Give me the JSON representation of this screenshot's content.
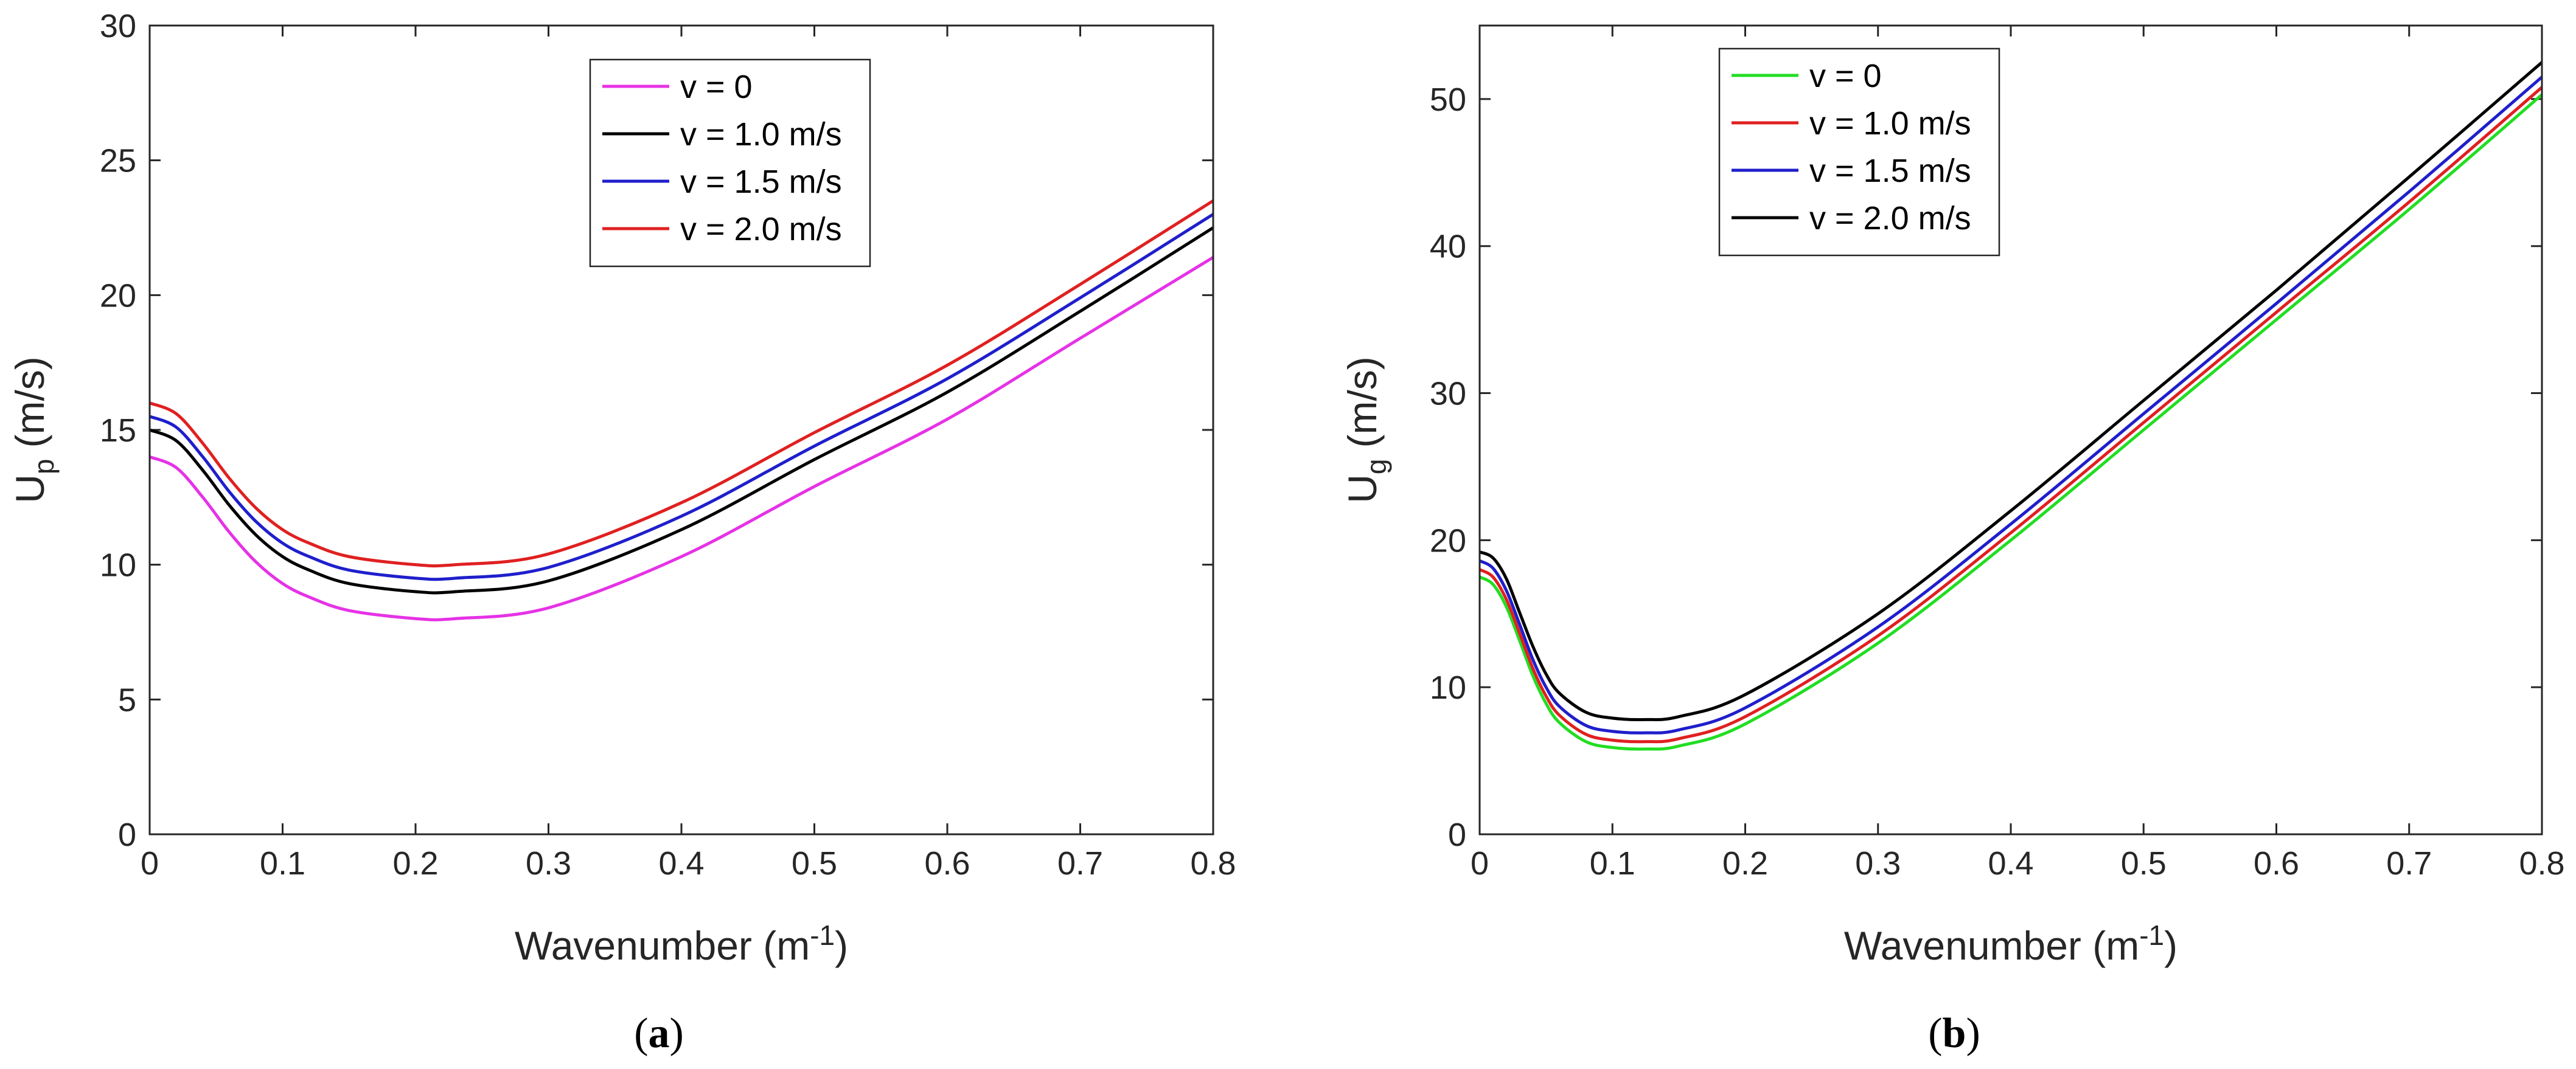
{
  "chart_data": [
    {
      "type": "line",
      "panel": "a",
      "caption_open": "(",
      "caption_letter": "a",
      "caption_close": ")",
      "ylabel_main": "U",
      "ylabel_sub": "p",
      "ylabel_unit": "(m/s)",
      "xlabel_main": "Wavenumber (m",
      "xlabel_sup": "-1",
      "xlabel_close": ")",
      "xlim": [
        0,
        0.8
      ],
      "ylim": [
        0,
        30
      ],
      "xticks": [
        "0",
        "0.1",
        "0.2",
        "0.3",
        "0.4",
        "0.5",
        "0.6",
        "0.7",
        "0.8"
      ],
      "yticks": [
        "0",
        "5",
        "10",
        "15",
        "20",
        "25",
        "30"
      ],
      "legend_position": "top-center",
      "x": [
        0,
        0.02,
        0.04,
        0.06,
        0.08,
        0.1,
        0.12,
        0.15,
        0.2,
        0.23,
        0.3,
        0.4,
        0.5,
        0.6,
        0.7,
        0.8
      ],
      "series": [
        {
          "name": "v = 0",
          "color": "#e632e6",
          "values": [
            14.0,
            13.6,
            12.5,
            11.2,
            10.1,
            9.3,
            8.8,
            8.3,
            8.0,
            8.0,
            8.4,
            10.3,
            12.9,
            15.4,
            18.4,
            21.4
          ]
        },
        {
          "name": "v = 1.0 m/s",
          "color": "#000000",
          "values": [
            15.0,
            14.6,
            13.5,
            12.2,
            11.1,
            10.3,
            9.8,
            9.3,
            9.0,
            9.0,
            9.4,
            11.3,
            13.9,
            16.4,
            19.4,
            22.5
          ]
        },
        {
          "name": "v = 1.5 m/s",
          "color": "#1f1fcc",
          "values": [
            15.5,
            15.1,
            14.0,
            12.7,
            11.6,
            10.8,
            10.3,
            9.8,
            9.5,
            9.5,
            9.9,
            11.8,
            14.4,
            16.9,
            19.9,
            23.0
          ]
        },
        {
          "name": "v = 2.0 m/s",
          "color": "#e02020",
          "values": [
            16.0,
            15.6,
            14.5,
            13.2,
            12.1,
            11.3,
            10.8,
            10.3,
            10.0,
            10.0,
            10.4,
            12.3,
            14.9,
            17.4,
            20.4,
            23.5
          ]
        }
      ]
    },
    {
      "type": "line",
      "panel": "b",
      "caption_open": "(",
      "caption_letter": "b",
      "caption_close": ")",
      "ylabel_main": "U",
      "ylabel_sub": "g",
      "ylabel_unit": "(m/s)",
      "xlabel_main": "Wavenumber (m",
      "xlabel_sup": "-1",
      "xlabel_close": ")",
      "xlim": [
        0,
        0.8
      ],
      "ylim": [
        0,
        55
      ],
      "xticks": [
        "0",
        "0.1",
        "0.2",
        "0.3",
        "0.4",
        "0.5",
        "0.6",
        "0.7",
        "0.8"
      ],
      "yticks": [
        "0",
        "10",
        "20",
        "30",
        "40",
        "50"
      ],
      "legend_position": "top-left",
      "x": [
        0,
        0.01,
        0.02,
        0.03,
        0.04,
        0.05,
        0.06,
        0.08,
        0.1,
        0.125,
        0.15,
        0.2,
        0.3,
        0.4,
        0.5,
        0.6,
        0.7,
        0.8
      ],
      "series": [
        {
          "name": "v = 0",
          "color": "#22dd22",
          "values": [
            17.5,
            17.0,
            15.5,
            13.2,
            10.8,
            8.9,
            7.6,
            6.3,
            5.9,
            5.8,
            6.0,
            7.5,
            13.0,
            20.0,
            27.5,
            35.0,
            42.5,
            50.3
          ]
        },
        {
          "name": "v = 1.0 m/s",
          "color": "#e02020",
          "values": [
            18.0,
            17.5,
            16.0,
            13.7,
            11.3,
            9.4,
            8.1,
            6.8,
            6.4,
            6.3,
            6.5,
            8.0,
            13.5,
            20.5,
            28.0,
            35.5,
            43.0,
            50.8
          ]
        },
        {
          "name": "v = 1.5 m/s",
          "color": "#1f1fcc",
          "values": [
            18.6,
            18.1,
            16.6,
            14.3,
            11.9,
            10.0,
            8.7,
            7.4,
            7.0,
            6.9,
            7.1,
            8.6,
            14.1,
            21.1,
            28.6,
            36.1,
            43.7,
            51.5
          ]
        },
        {
          "name": "v = 2.0 m/s",
          "color": "#000000",
          "values": [
            19.2,
            18.8,
            17.4,
            15.1,
            12.8,
            10.9,
            9.6,
            8.3,
            7.9,
            7.8,
            8.0,
            9.5,
            15.0,
            22.0,
            29.5,
            37.0,
            44.7,
            52.5
          ]
        }
      ]
    }
  ]
}
